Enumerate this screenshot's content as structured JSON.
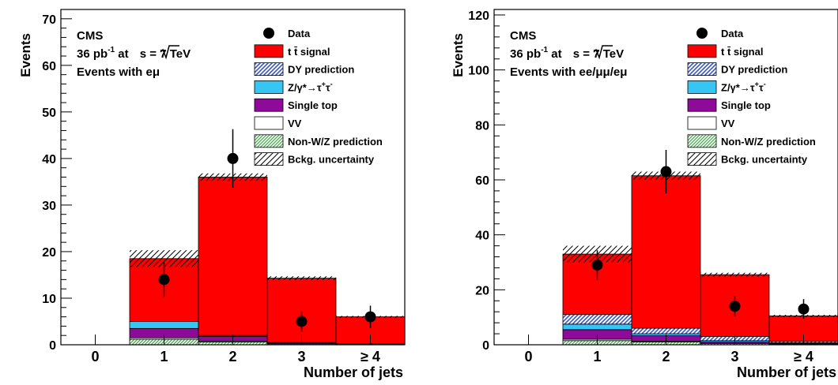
{
  "chart_data": [
    {
      "type": "bar",
      "stacked": true,
      "text_lines": [
        "CMS",
        "36 pb",
        "-1",
        " at ",
        "s",
        "  =  7 TeV",
        "Events with eμ"
      ],
      "ylabel": "Events",
      "xlabel": "Number of jets",
      "ylim": [
        0,
        72
      ],
      "yticks": [
        0,
        10,
        20,
        30,
        40,
        50,
        60,
        70
      ],
      "categories": [
        "0",
        "1",
        "2",
        "3",
        "≥ 4"
      ],
      "series": [
        {
          "name": "Non-W/Z prediction",
          "values": [
            0,
            1.2,
            0.6,
            0.2,
            0.1
          ]
        },
        {
          "name": "VV",
          "values": [
            0,
            0.3,
            0.2,
            0.1,
            0.0
          ]
        },
        {
          "name": "Single top",
          "values": [
            0,
            2.0,
            1.0,
            0.2,
            0.1
          ]
        },
        {
          "name": "Z/γ*→τ⁺τ⁻",
          "values": [
            0,
            1.5,
            0.2,
            0.0,
            0.0
          ]
        },
        {
          "name": "DY prediction",
          "values": [
            0,
            0.0,
            0.0,
            0.0,
            0.0
          ]
        },
        {
          "name": "t t̄ signal",
          "values": [
            0,
            13.5,
            34.0,
            13.8,
            5.8
          ]
        }
      ],
      "uncertainty": [
        0,
        1.8,
        0.8,
        0.4,
        0.2
      ],
      "data": {
        "name": "Data",
        "values": [
          0,
          14,
          40,
          5,
          6
        ],
        "errors": [
          0,
          3.7,
          6.3,
          2.2,
          2.4
        ]
      }
    },
    {
      "type": "bar",
      "stacked": true,
      "text_lines": [
        "CMS",
        "36 pb",
        "-1",
        " at ",
        "s",
        "  =  7 TeV",
        "Events with ee/μμ/eμ"
      ],
      "ylabel": "Events",
      "xlabel": "Number of jets",
      "ylim": [
        0,
        122
      ],
      "yticks": [
        0,
        20,
        40,
        60,
        80,
        100,
        120
      ],
      "categories": [
        "0",
        "1",
        "2",
        "3",
        "≥ 4"
      ],
      "series": [
        {
          "name": "Non-W/Z prediction",
          "values": [
            0,
            1.5,
            1.0,
            0.4,
            0.2
          ]
        },
        {
          "name": "VV",
          "values": [
            0,
            0.5,
            0.3,
            0.1,
            0.0
          ]
        },
        {
          "name": "Single top",
          "values": [
            0,
            3.5,
            2.0,
            0.5,
            0.3
          ]
        },
        {
          "name": "Z/γ*→τ⁺τ⁻",
          "values": [
            0,
            2.0,
            0.7,
            0.5,
            0.2
          ]
        },
        {
          "name": "DY prediction",
          "values": [
            0,
            3.5,
            2.0,
            1.5,
            0.5
          ]
        },
        {
          "name": "t t̄ signal",
          "values": [
            0,
            22.0,
            55.5,
            22.5,
            9.3
          ]
        }
      ],
      "uncertainty": [
        0,
        3.0,
        1.5,
        0.7,
        0.4
      ],
      "data": {
        "name": "Data",
        "values": [
          0,
          29,
          63,
          14,
          13
        ],
        "errors": [
          0,
          5.4,
          7.9,
          3.7,
          3.6
        ]
      }
    }
  ],
  "legend_labels": {
    "data": "Data",
    "signal_main": "t t̄",
    "signal_suffix": " signal",
    "dy": "DY prediction",
    "ztt_main": "Z/γ*→τ",
    "ztt_sup1": "+",
    "ztt_mid": "τ",
    "ztt_sup2": "-",
    "single_top": "Single top",
    "vv": "VV",
    "nonwz": "Non-W/Z prediction",
    "unc": "Bckg. uncertainty"
  },
  "colors": {
    "signal": "#ff0000",
    "dy": "#3d56c7",
    "ztt": "#37c6f4",
    "single_top": "#8e0a99",
    "vv": "#ffffff",
    "nonwz": "#3da845",
    "axis": "#000000"
  }
}
